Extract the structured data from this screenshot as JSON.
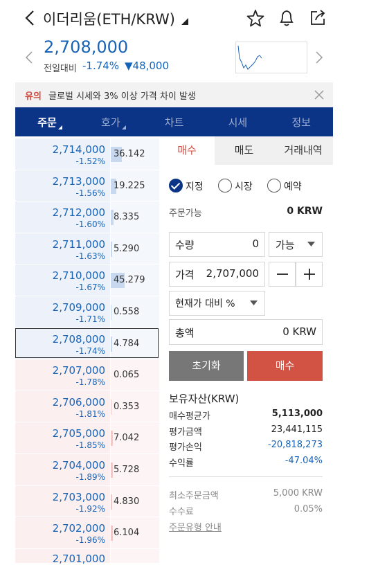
{
  "header": {
    "title": "이더리움(ETH/KRW)",
    "price": "2,708,000",
    "change_label": "전일대비",
    "change_rate": "-1.74%",
    "change_amount": "▼48,000"
  },
  "notice": {
    "tag": "유의",
    "text": "글로벌 시세와 3% 이상 가격 차이 발생"
  },
  "tabs": [
    "주문",
    "호가",
    "차트",
    "시세",
    "정보"
  ],
  "orderbook": {
    "asks": [
      {
        "price": "2,714,000",
        "rate": "-1.52%",
        "volume": 36.142
      },
      {
        "price": "2,713,000",
        "rate": "-1.56%",
        "volume": 19.225
      },
      {
        "price": "2,712,000",
        "rate": "-1.60%",
        "volume": 8.335
      },
      {
        "price": "2,711,000",
        "rate": "-1.63%",
        "volume": 5.29,
        "volume_label": "5.290"
      },
      {
        "price": "2,710,000",
        "rate": "-1.67%",
        "volume": 45.279
      },
      {
        "price": "2,709,000",
        "rate": "-1.71%",
        "volume": 0.558
      },
      {
        "price": "2,708,000",
        "rate": "-1.74%",
        "volume": 4.784
      }
    ],
    "bids": [
      {
        "price": "2,707,000",
        "rate": "-1.78%",
        "volume": 0.065
      },
      {
        "price": "2,706,000",
        "rate": "-1.81%",
        "volume": 0.353
      },
      {
        "price": "2,705,000",
        "rate": "-1.85%",
        "volume": 7.042
      },
      {
        "price": "2,704,000",
        "rate": "-1.89%",
        "volume": 5.728
      },
      {
        "price": "2,703,000",
        "rate": "-1.92%",
        "volume": 4.83,
        "volume_label": "4.830"
      },
      {
        "price": "2,702,000",
        "rate": "-1.96%",
        "volume": 6.104
      }
    ],
    "partial_price": "2,701,000"
  },
  "order_panel": {
    "tabs": [
      "매수",
      "매도",
      "거래내역"
    ],
    "order_types": [
      "지정",
      "시장",
      "예약"
    ],
    "available_label": "주문가능",
    "available_value": "0 KRW",
    "qty_label": "수량",
    "qty_value": "0",
    "qty_select": "가능",
    "price_label": "가격",
    "price_value": "2,707,000",
    "percent_select": "현재가 대비 %",
    "total_label": "총액",
    "total_value": "0 KRW",
    "reset_button": "초기화",
    "buy_button": "매수"
  },
  "holdings": {
    "title": "보유자산(KRW)",
    "rows": [
      [
        "매수평균가",
        "5,113,000"
      ],
      [
        "평가금액",
        "23,441,115"
      ],
      [
        "평가손익",
        "-20,818,273"
      ],
      [
        "수익률",
        "-47.04%"
      ]
    ]
  },
  "info": {
    "rows": [
      [
        "최소주문금액",
        "5,000 KRW"
      ],
      [
        "수수료",
        "0.05%"
      ]
    ],
    "guide_link": "주문유형 안내"
  }
}
